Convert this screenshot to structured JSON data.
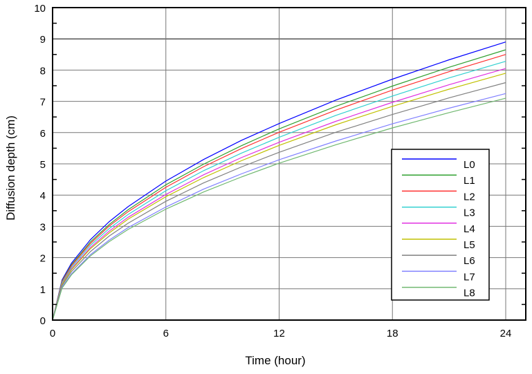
{
  "chart_data": {
    "type": "line",
    "title": "",
    "xlabel": "Time (hour)",
    "ylabel": "Diffusion depth (cm)",
    "xlim": [
      0,
      25
    ],
    "ylim": [
      0,
      10
    ],
    "xticks": [
      0,
      6,
      12,
      18,
      24
    ],
    "yticks": [
      0,
      1,
      2,
      3,
      4,
      5,
      6,
      7,
      8,
      9,
      10
    ],
    "grid": true,
    "legend_position": "lower-right",
    "x": [
      0,
      0.5,
      1,
      2,
      3,
      4,
      6,
      8,
      10,
      12,
      15,
      18,
      21,
      24
    ],
    "series": [
      {
        "name": "L0",
        "color": "#0000ff",
        "values": [
          0,
          1.28,
          1.82,
          2.57,
          3.15,
          3.63,
          4.45,
          5.14,
          5.75,
          6.29,
          7.04,
          7.71,
          8.33,
          8.9
        ]
      },
      {
        "name": "L1",
        "color": "#30a030",
        "values": [
          0,
          1.25,
          1.77,
          2.5,
          3.06,
          3.53,
          4.33,
          4.99,
          5.58,
          6.12,
          6.84,
          7.49,
          8.09,
          8.65
        ]
      },
      {
        "name": "L2",
        "color": "#ff3030",
        "values": [
          0,
          1.23,
          1.74,
          2.45,
          3.01,
          3.47,
          4.25,
          4.91,
          5.49,
          6.01,
          6.72,
          7.36,
          7.95,
          8.5
        ]
      },
      {
        "name": "L3",
        "color": "#30d0d0",
        "values": [
          0,
          1.2,
          1.69,
          2.39,
          2.93,
          3.38,
          4.14,
          4.78,
          5.34,
          5.85,
          6.55,
          7.17,
          7.75,
          8.28
        ]
      },
      {
        "name": "L4",
        "color": "#e030e0",
        "values": [
          0,
          1.16,
          1.64,
          2.32,
          2.85,
          3.29,
          4.02,
          4.65,
          5.2,
          5.69,
          6.36,
          6.97,
          7.53,
          8.05
        ]
      },
      {
        "name": "L5",
        "color": "#c0c000",
        "values": [
          0,
          1.14,
          1.61,
          2.28,
          2.79,
          3.23,
          3.95,
          4.56,
          5.1,
          5.59,
          6.25,
          6.84,
          7.39,
          7.9
        ]
      },
      {
        "name": "L6",
        "color": "#808080",
        "values": [
          0,
          1.1,
          1.55,
          2.19,
          2.69,
          3.1,
          3.8,
          4.39,
          4.9,
          5.37,
          6.01,
          6.58,
          7.11,
          7.6
        ]
      },
      {
        "name": "L7",
        "color": "#8080ff",
        "values": [
          0,
          1.05,
          1.48,
          2.09,
          2.56,
          2.96,
          3.62,
          4.19,
          4.68,
          5.13,
          5.73,
          6.28,
          6.78,
          7.25
        ]
      },
      {
        "name": "L8",
        "color": "#70b870",
        "values": [
          0,
          1.02,
          1.45,
          2.05,
          2.51,
          2.9,
          3.55,
          4.1,
          4.58,
          5.02,
          5.61,
          6.15,
          6.64,
          7.1
        ]
      }
    ]
  }
}
